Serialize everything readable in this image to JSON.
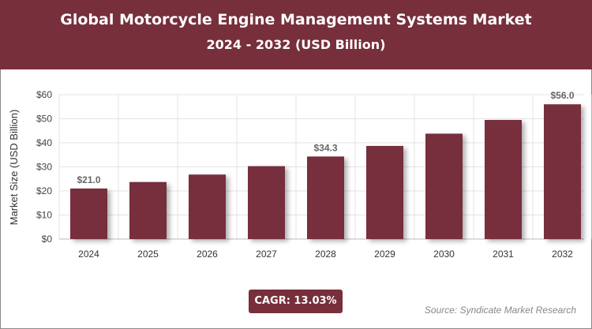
{
  "title": "Global Motorcycle Engine Management Systems Market",
  "subtitle": "2024 - 2032 (USD Billion)",
  "cagr": "CAGR: 13.03%",
  "source": "Source: Syndicate Market Research",
  "colors": {
    "bar": "#772f3c",
    "header": "#772f3c"
  },
  "chart_data": {
    "type": "bar",
    "title": "Global Motorcycle Engine Management Systems Market",
    "ylabel": "Market Size (USD Billion)",
    "xlabel": "",
    "categories": [
      "2024",
      "2025",
      "2026",
      "2027",
      "2028",
      "2029",
      "2030",
      "2031",
      "2032"
    ],
    "values": [
      21.0,
      23.7,
      26.8,
      30.3,
      34.3,
      38.7,
      43.8,
      49.5,
      56.0
    ],
    "data_labels": {
      "0": "$21.0",
      "4": "$34.3",
      "8": "$56.0"
    },
    "ylim": [
      0,
      60
    ],
    "yticks": [
      "$0",
      "$10",
      "$20",
      "$30",
      "$40",
      "$50",
      "$60"
    ],
    "grid": true
  }
}
